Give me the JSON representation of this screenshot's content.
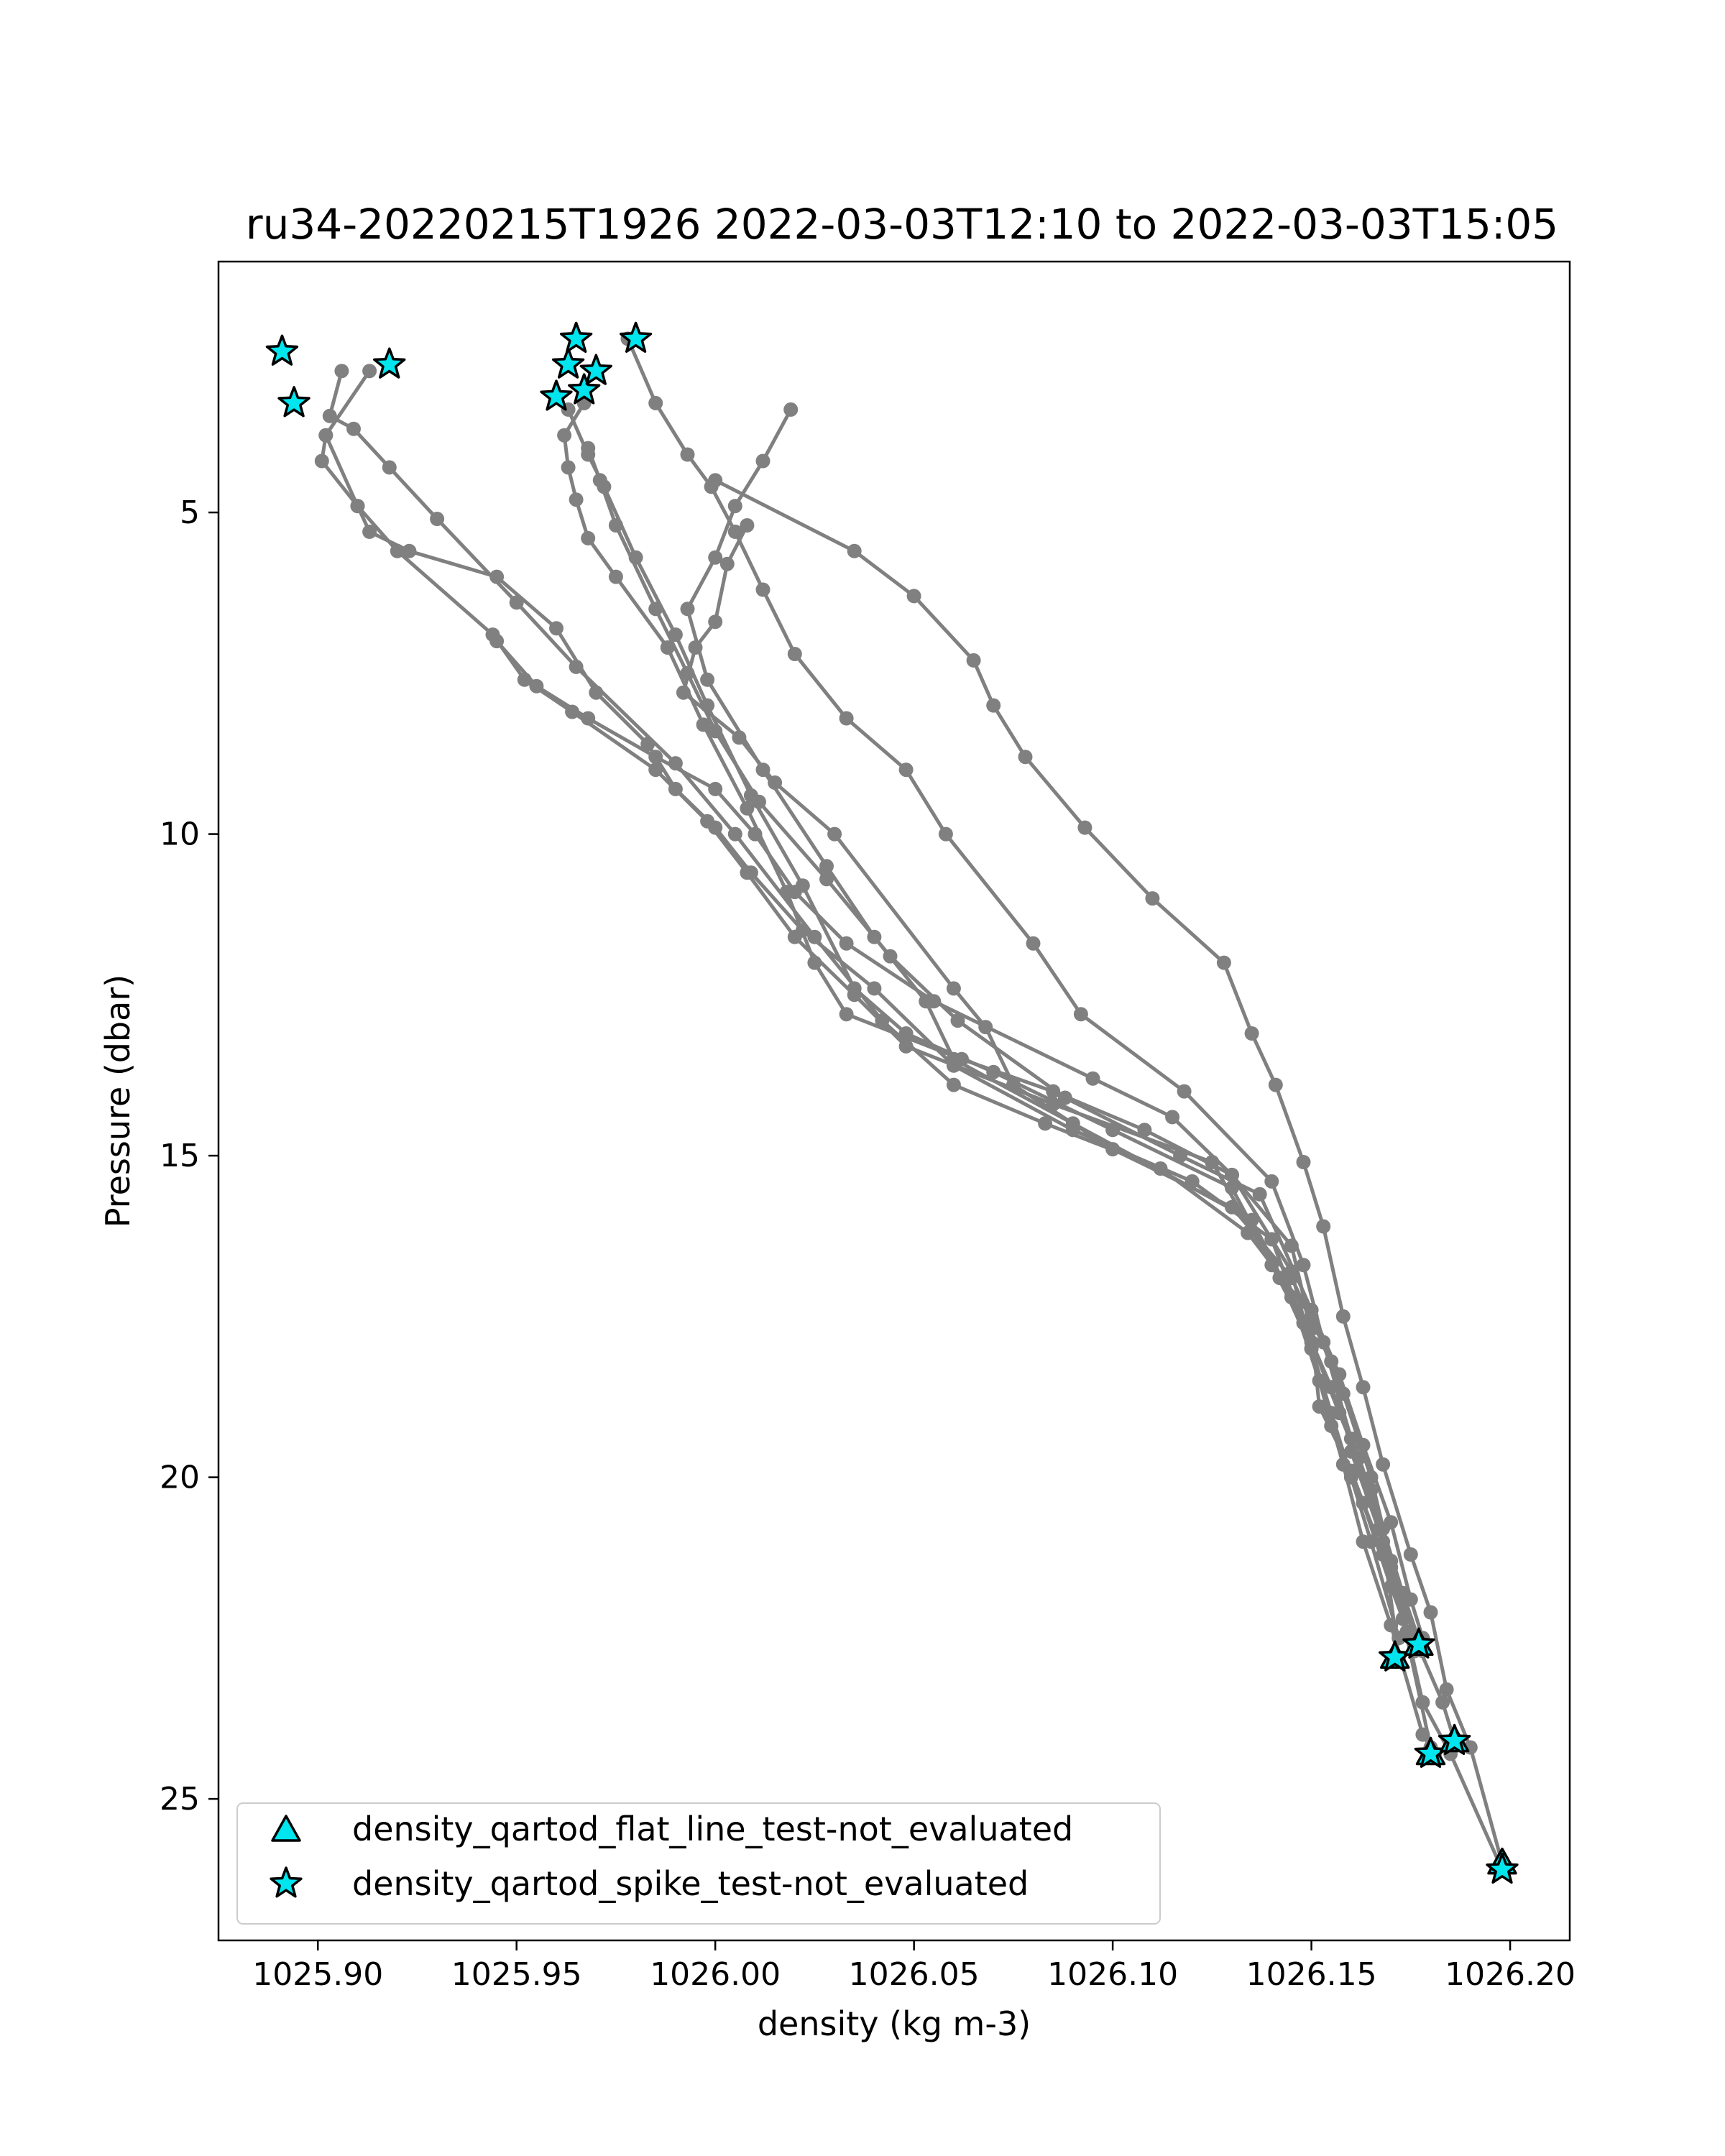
{
  "chart_data": {
    "type": "line",
    "title": "ru34-20220215T1926 2022-03-03T12:10 to 2022-03-03T15:05",
    "xlabel": "density (kg m-3)",
    "ylabel": "Pressure (dbar)",
    "xlim": [
      1025.875,
      1026.215
    ],
    "ylim": [
      27.2,
      1.1
    ],
    "y_inverted": true,
    "xticks": [
      1025.9,
      1025.95,
      1026.0,
      1026.05,
      1026.1,
      1026.15,
      1026.2
    ],
    "xtick_labels": [
      "1025.90",
      "1025.95",
      "1026.00",
      "1026.05",
      "1026.10",
      "1026.15",
      "1026.20"
    ],
    "yticks": [
      5,
      10,
      15,
      20,
      25
    ],
    "ytick_labels": [
      "5",
      "10",
      "15",
      "20",
      "25"
    ],
    "grid": false,
    "legend_position": "lower-left",
    "line_color": "#808080",
    "marker_color": "#808080",
    "flag_color": "#00e5ee",
    "series": [
      {
        "points": [
          [
            1026.008,
            5.2
          ],
          [
            1026.003,
            5.8
          ],
          [
            1026.0,
            6.7
          ],
          [
            1025.995,
            7.1
          ],
          [
            1025.992,
            7.8
          ],
          [
            1026.006,
            8.5
          ],
          [
            1026.015,
            9.2
          ],
          [
            1026.03,
            10.0
          ],
          [
            1026.06,
            12.4
          ],
          [
            1026.068,
            13.0
          ],
          [
            1026.075,
            13.9
          ],
          [
            1026.1,
            14.9
          ],
          [
            1026.13,
            15.8
          ],
          [
            1026.145,
            16.9
          ],
          [
            1026.155,
            18.2
          ],
          [
            1026.16,
            19.6
          ],
          [
            1026.168,
            21.0
          ],
          [
            1026.172,
            22.8
          ]
        ]
      },
      {
        "points": [
          [
            1026.019,
            3.4
          ],
          [
            1026.012,
            4.2
          ],
          [
            1026.005,
            4.9
          ],
          [
            1026.0,
            5.7
          ],
          [
            1025.993,
            6.5
          ],
          [
            1025.998,
            7.6
          ],
          [
            1026.012,
            9.0
          ],
          [
            1026.028,
            10.5
          ],
          [
            1026.04,
            11.6
          ],
          [
            1026.053,
            12.6
          ],
          [
            1026.06,
            13.5
          ],
          [
            1026.09,
            14.5
          ],
          [
            1026.135,
            16.0
          ],
          [
            1026.145,
            17.2
          ],
          [
            1026.152,
            18.5
          ],
          [
            1026.158,
            19.8
          ],
          [
            1026.163,
            21.0
          ],
          [
            1026.17,
            22.3
          ],
          [
            1026.178,
            24.0
          ],
          [
            1026.181,
            24.3
          ]
        ]
      },
      {
        "points": [
          [
            1025.945,
            7.0
          ],
          [
            1025.955,
            7.7
          ],
          [
            1025.968,
            8.2
          ],
          [
            1025.985,
            8.8
          ],
          [
            1026.0,
            9.3
          ],
          [
            1026.01,
            10.0
          ],
          [
            1026.02,
            10.9
          ],
          [
            1026.033,
            11.7
          ],
          [
            1026.055,
            12.6
          ],
          [
            1026.095,
            13.8
          ],
          [
            1026.115,
            14.4
          ],
          [
            1026.13,
            15.3
          ],
          [
            1026.145,
            16.4
          ],
          [
            1026.15,
            17.7
          ],
          [
            1026.152,
            18.9
          ],
          [
            1026.16,
            19.9
          ],
          [
            1026.168,
            21.2
          ],
          [
            1026.176,
            22.7
          ]
        ]
      },
      {
        "points": [
          [
            1025.913,
            2.8
          ],
          [
            1025.902,
            3.8
          ],
          [
            1025.901,
            4.2
          ],
          [
            1025.91,
            4.9
          ],
          [
            1025.913,
            5.3
          ],
          [
            1025.923,
            5.6
          ],
          [
            1025.945,
            6.0
          ],
          [
            1025.96,
            6.8
          ],
          [
            1025.97,
            7.8
          ],
          [
            1025.983,
            8.6
          ],
          [
            1025.99,
            9.3
          ],
          [
            1026.0,
            9.9
          ],
          [
            1026.009,
            10.6
          ],
          [
            1026.022,
            11.5
          ],
          [
            1026.04,
            12.4
          ],
          [
            1026.06,
            13.6
          ],
          [
            1026.09,
            14.6
          ],
          [
            1026.12,
            15.4
          ],
          [
            1026.14,
            16.3
          ],
          [
            1026.148,
            17.6
          ],
          [
            1026.155,
            18.6
          ],
          [
            1026.162,
            19.7
          ],
          [
            1026.168,
            20.8
          ],
          [
            1026.173,
            21.8
          ],
          [
            1026.178,
            22.7
          ]
        ]
      },
      {
        "points": [
          [
            1025.902,
            3.8
          ],
          [
            1025.91,
            4.9
          ],
          [
            1025.92,
            5.6
          ],
          [
            1025.944,
            6.9
          ],
          [
            1025.952,
            7.6
          ],
          [
            1025.964,
            8.1
          ],
          [
            1025.985,
            9.0
          ],
          [
            1025.998,
            9.8
          ],
          [
            1026.008,
            10.6
          ],
          [
            1026.02,
            11.6
          ],
          [
            1026.035,
            12.5
          ],
          [
            1026.048,
            13.3
          ],
          [
            1026.085,
            14.2
          ],
          [
            1026.125,
            15.1
          ],
          [
            1026.14,
            16.7
          ],
          [
            1026.15,
            17.9
          ],
          [
            1026.157,
            19.0
          ],
          [
            1026.165,
            20.2
          ],
          [
            1026.17,
            21.4
          ],
          [
            1026.176,
            22.5
          ],
          [
            1026.183,
            23.5
          ],
          [
            1026.186,
            24.1
          ]
        ]
      },
      {
        "points": [
          [
            1025.967,
            3.3
          ],
          [
            1025.962,
            3.8
          ],
          [
            1025.963,
            4.3
          ],
          [
            1025.965,
            4.8
          ],
          [
            1025.968,
            5.4
          ],
          [
            1025.975,
            6.0
          ],
          [
            1025.988,
            7.1
          ],
          [
            1025.997,
            8.3
          ],
          [
            1026.008,
            9.6
          ],
          [
            1026.018,
            10.9
          ],
          [
            1026.025,
            12.0
          ],
          [
            1026.033,
            12.8
          ],
          [
            1026.062,
            13.5
          ],
          [
            1026.085,
            14.0
          ],
          [
            1026.108,
            14.6
          ],
          [
            1026.13,
            15.3
          ],
          [
            1026.145,
            16.8
          ],
          [
            1026.15,
            18.0
          ],
          [
            1026.155,
            19.2
          ],
          [
            1026.163,
            20.4
          ],
          [
            1026.17,
            21.7
          ],
          [
            1026.176,
            22.7
          ]
        ]
      },
      {
        "points": [
          [
            1025.978,
            2.3
          ],
          [
            1025.985,
            3.3
          ],
          [
            1025.993,
            4.1
          ],
          [
            1025.999,
            4.6
          ],
          [
            1026.005,
            5.3
          ],
          [
            1026.012,
            6.2
          ],
          [
            1026.02,
            7.2
          ],
          [
            1026.033,
            8.2
          ],
          [
            1026.048,
            9.0
          ],
          [
            1026.058,
            10.0
          ],
          [
            1026.08,
            11.7
          ],
          [
            1026.092,
            12.8
          ],
          [
            1026.118,
            14.0
          ],
          [
            1026.14,
            15.4
          ],
          [
            1026.148,
            16.7
          ],
          [
            1026.153,
            17.9
          ],
          [
            1026.16,
            19.4
          ],
          [
            1026.167,
            20.8
          ],
          [
            1026.173,
            22.2
          ],
          [
            1026.18,
            24.2
          ]
        ]
      },
      {
        "points": [
          [
            1025.963,
            3.4
          ],
          [
            1025.968,
            4.1
          ],
          [
            1025.972,
            4.6
          ],
          [
            1025.98,
            5.7
          ],
          [
            1025.99,
            6.9
          ],
          [
            1025.998,
            8.0
          ],
          [
            1026.009,
            9.4
          ],
          [
            1026.022,
            10.8
          ],
          [
            1026.035,
            12.4
          ],
          [
            1026.048,
            13.1
          ],
          [
            1026.07,
            13.7
          ],
          [
            1026.1,
            14.6
          ],
          [
            1026.13,
            15.5
          ],
          [
            1026.142,
            16.9
          ],
          [
            1026.15,
            18.0
          ],
          [
            1026.155,
            19.0
          ],
          [
            1026.16,
            20.0
          ],
          [
            1026.165,
            21.0
          ],
          [
            1026.172,
            22.5
          ]
        ]
      },
      {
        "points": [
          [
            1025.968,
            4.0
          ],
          [
            1025.971,
            4.5
          ],
          [
            1025.975,
            5.2
          ],
          [
            1025.985,
            6.5
          ],
          [
            1025.993,
            7.5
          ],
          [
            1026.0,
            8.4
          ],
          [
            1026.011,
            9.5
          ],
          [
            1026.028,
            10.7
          ],
          [
            1026.044,
            11.9
          ],
          [
            1026.061,
            12.9
          ],
          [
            1026.088,
            14.1
          ],
          [
            1026.117,
            15.0
          ],
          [
            1026.137,
            15.6
          ],
          [
            1026.15,
            17.4
          ],
          [
            1026.157,
            18.4
          ],
          [
            1026.163,
            19.5
          ],
          [
            1026.17,
            20.7
          ],
          [
            1026.175,
            21.9
          ],
          [
            1026.178,
            22.5
          ]
        ]
      },
      {
        "points": [
          [
            1026.0,
            4.5
          ],
          [
            1026.035,
            5.6
          ],
          [
            1026.05,
            6.3
          ],
          [
            1026.065,
            7.3
          ],
          [
            1026.07,
            8.0
          ],
          [
            1026.078,
            8.8
          ],
          [
            1026.093,
            9.9
          ],
          [
            1026.11,
            11.0
          ],
          [
            1026.128,
            12.0
          ],
          [
            1026.135,
            13.1
          ],
          [
            1026.141,
            13.9
          ],
          [
            1026.148,
            15.1
          ],
          [
            1026.153,
            16.1
          ],
          [
            1026.158,
            17.5
          ],
          [
            1026.163,
            18.6
          ],
          [
            1026.168,
            19.8
          ],
          [
            1026.175,
            21.2
          ],
          [
            1026.18,
            22.1
          ],
          [
            1026.184,
            23.3
          ],
          [
            1026.19,
            24.2
          ],
          [
            1026.198,
            26.0
          ]
        ]
      },
      {
        "points": [
          [
            1025.906,
            2.8
          ],
          [
            1025.903,
            3.5
          ],
          [
            1025.909,
            3.7
          ],
          [
            1025.918,
            4.3
          ],
          [
            1025.93,
            5.1
          ],
          [
            1025.95,
            6.4
          ],
          [
            1025.965,
            7.4
          ],
          [
            1025.99,
            8.9
          ],
          [
            1026.005,
            10.0
          ],
          [
            1026.025,
            11.6
          ],
          [
            1026.042,
            12.9
          ],
          [
            1026.06,
            13.9
          ],
          [
            1026.083,
            14.5
          ],
          [
            1026.112,
            15.2
          ],
          [
            1026.134,
            16.2
          ],
          [
            1026.15,
            17.5
          ],
          [
            1026.158,
            18.7
          ],
          [
            1026.165,
            20.0
          ],
          [
            1026.17,
            21.3
          ],
          [
            1026.174,
            22.4
          ],
          [
            1026.178,
            23.5
          ],
          [
            1026.185,
            24.3
          ],
          [
            1026.198,
            26.1
          ]
        ]
      }
    ],
    "flagged_points": [
      {
        "x": 1025.891,
        "y": 2.5,
        "marker": "star"
      },
      {
        "x": 1025.894,
        "y": 3.3,
        "marker": "star"
      },
      {
        "x": 1025.918,
        "y": 2.7,
        "marker": "star"
      },
      {
        "x": 1025.96,
        "y": 3.2,
        "marker": "star"
      },
      {
        "x": 1025.963,
        "y": 2.7,
        "marker": "star"
      },
      {
        "x": 1025.965,
        "y": 2.3,
        "marker": "star"
      },
      {
        "x": 1025.967,
        "y": 3.1,
        "marker": "star"
      },
      {
        "x": 1025.97,
        "y": 2.8,
        "marker": "star"
      },
      {
        "x": 1025.98,
        "y": 2.3,
        "marker": "star"
      },
      {
        "x": 1026.171,
        "y": 22.8,
        "marker": "triangle"
      },
      {
        "x": 1026.171,
        "y": 22.8,
        "marker": "star"
      },
      {
        "x": 1026.177,
        "y": 22.6,
        "marker": "triangle"
      },
      {
        "x": 1026.177,
        "y": 22.6,
        "marker": "star"
      },
      {
        "x": 1026.18,
        "y": 24.3,
        "marker": "triangle"
      },
      {
        "x": 1026.18,
        "y": 24.3,
        "marker": "star"
      },
      {
        "x": 1026.186,
        "y": 24.1,
        "marker": "triangle"
      },
      {
        "x": 1026.186,
        "y": 24.1,
        "marker": "star"
      },
      {
        "x": 1026.198,
        "y": 26.0,
        "marker": "triangle"
      },
      {
        "x": 1026.198,
        "y": 26.1,
        "marker": "star"
      }
    ],
    "legend": [
      {
        "label": "density_qartod_flat_line_test-not_evaluated",
        "marker": "triangle",
        "color": "#00e5ee"
      },
      {
        "label": "density_qartod_spike_test-not_evaluated",
        "marker": "star",
        "color": "#00e5ee"
      }
    ]
  }
}
